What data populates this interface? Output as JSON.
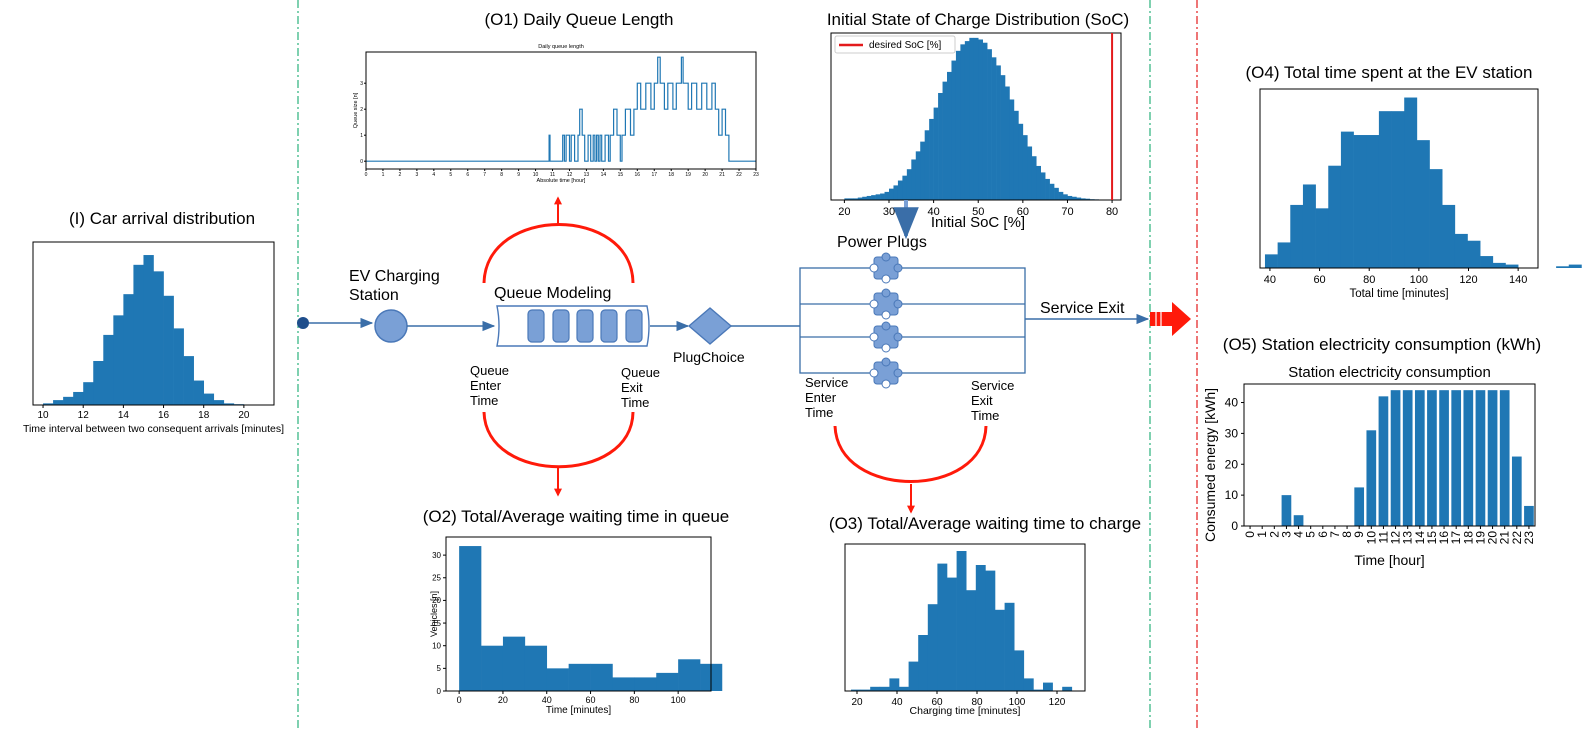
{
  "colors": {
    "bar": "#1f77b4",
    "red": "#ff1a0a",
    "accent_line": "#e31a1c",
    "flow": "#3a6ea8",
    "node_fill": "#7aa0d6",
    "node_stroke": "#4a78b8",
    "sep_green": "#2ab27b",
    "sep_red": "#e31a1c"
  },
  "titles": {
    "o1": "(O1) Daily Queue Length",
    "soc": "Initial State of Charge Distribution (SoC)",
    "o4": "(O4) Total  time spent at the EV station",
    "i": "(I) Car arrival distribution",
    "o5": "(O5) Station electricity consumption (kWh)",
    "o2": "(O2) Total/Average waiting time in queue",
    "o3": "(O3) Total/Average waiting time to charge"
  },
  "diagram": {
    "ev_station": [
      "EV Charging",
      "Station"
    ],
    "queue_modeling": "Queue  Modeling",
    "plug_choice": "PlugChoice",
    "power_plugs": "Power Plugs",
    "service_exit": "Service Exit",
    "queue_enter": [
      "Queue",
      "Enter",
      "Time"
    ],
    "queue_exit": [
      "Queue",
      "Exit",
      "Time"
    ],
    "service_enter": [
      "Service",
      "Enter",
      "Time"
    ],
    "service_exit_time": [
      "Service",
      "Exit",
      "Time"
    ]
  },
  "chart_data": [
    {
      "id": "arrival",
      "type": "bar",
      "xlabel": "Time interval between two consequent arrivals [minutes]",
      "xlim": [
        9.5,
        21.5
      ],
      "ylim": [
        0,
        1.0
      ],
      "xticks": [
        10,
        12,
        14,
        16,
        18,
        20
      ],
      "bin_start": 10,
      "bin_width": 0.5,
      "values": [
        0.01,
        0.03,
        0.05,
        0.08,
        0.14,
        0.27,
        0.43,
        0.55,
        0.68,
        0.86,
        0.92,
        0.82,
        0.67,
        0.47,
        0.3,
        0.15,
        0.07,
        0.03,
        0.01,
        0.005
      ]
    },
    {
      "id": "queue",
      "type": "line",
      "title": "Daily queue length",
      "xlabel": "Absolute time [hour]",
      "ylabel": "Queue size [n]",
      "xlim": [
        0,
        23
      ],
      "ylim": [
        -0.3,
        4.2
      ],
      "xticks": [
        0,
        1,
        2,
        3,
        4,
        5,
        6,
        7,
        8,
        9,
        10,
        11,
        12,
        13,
        14,
        15,
        16,
        17,
        18,
        19,
        20,
        21,
        22,
        23
      ],
      "yticks": [
        0,
        1,
        2,
        3
      ],
      "points": [
        [
          0,
          0
        ],
        [
          10.8,
          0
        ],
        [
          10.8,
          1
        ],
        [
          10.85,
          1
        ],
        [
          10.85,
          0
        ],
        [
          11.6,
          0
        ],
        [
          11.6,
          1
        ],
        [
          11.7,
          1
        ],
        [
          11.7,
          0
        ],
        [
          11.8,
          0
        ],
        [
          11.8,
          1
        ],
        [
          12.0,
          1
        ],
        [
          12.0,
          0
        ],
        [
          12.1,
          0
        ],
        [
          12.1,
          1
        ],
        [
          12.3,
          1
        ],
        [
          12.3,
          0
        ],
        [
          12.5,
          0
        ],
        [
          12.5,
          1
        ],
        [
          12.6,
          1
        ],
        [
          12.6,
          2
        ],
        [
          12.75,
          2
        ],
        [
          12.75,
          1
        ],
        [
          12.9,
          1
        ],
        [
          12.9,
          0
        ],
        [
          13.1,
          0
        ],
        [
          13.1,
          1
        ],
        [
          13.25,
          1
        ],
        [
          13.25,
          0
        ],
        [
          13.4,
          0
        ],
        [
          13.4,
          1
        ],
        [
          13.5,
          1
        ],
        [
          13.5,
          0
        ],
        [
          13.6,
          0
        ],
        [
          13.6,
          1
        ],
        [
          13.7,
          1
        ],
        [
          13.7,
          0
        ],
        [
          13.8,
          0
        ],
        [
          13.8,
          1
        ],
        [
          13.9,
          1
        ],
        [
          13.9,
          0
        ],
        [
          14.1,
          0
        ],
        [
          14.1,
          1
        ],
        [
          14.3,
          1
        ],
        [
          14.3,
          0
        ],
        [
          14.4,
          0
        ],
        [
          14.4,
          1
        ],
        [
          14.6,
          1
        ],
        [
          14.6,
          2
        ],
        [
          14.8,
          2
        ],
        [
          14.8,
          1
        ],
        [
          15.0,
          1
        ],
        [
          15.0,
          0
        ],
        [
          15.1,
          0
        ],
        [
          15.1,
          1
        ],
        [
          15.3,
          1
        ],
        [
          15.3,
          2
        ],
        [
          15.6,
          2
        ],
        [
          15.6,
          1
        ],
        [
          15.8,
          1
        ],
        [
          15.8,
          2
        ],
        [
          16.0,
          2
        ],
        [
          16.0,
          3
        ],
        [
          16.2,
          3
        ],
        [
          16.2,
          2
        ],
        [
          16.5,
          2
        ],
        [
          16.5,
          3
        ],
        [
          16.8,
          3
        ],
        [
          16.8,
          2
        ],
        [
          17.0,
          2
        ],
        [
          17.0,
          3
        ],
        [
          17.2,
          3
        ],
        [
          17.2,
          4
        ],
        [
          17.35,
          4
        ],
        [
          17.35,
          3
        ],
        [
          17.6,
          3
        ],
        [
          17.6,
          2
        ],
        [
          17.8,
          2
        ],
        [
          17.8,
          3
        ],
        [
          18.1,
          3
        ],
        [
          18.1,
          2
        ],
        [
          18.3,
          2
        ],
        [
          18.3,
          3
        ],
        [
          18.6,
          3
        ],
        [
          18.6,
          4
        ],
        [
          18.7,
          4
        ],
        [
          18.7,
          3
        ],
        [
          19.0,
          3
        ],
        [
          19.0,
          2
        ],
        [
          19.2,
          2
        ],
        [
          19.2,
          3
        ],
        [
          19.5,
          3
        ],
        [
          19.5,
          2
        ],
        [
          19.8,
          2
        ],
        [
          19.8,
          3
        ],
        [
          20.1,
          3
        ],
        [
          20.1,
          2
        ],
        [
          20.4,
          2
        ],
        [
          20.4,
          3
        ],
        [
          20.6,
          3
        ],
        [
          20.6,
          2
        ],
        [
          20.8,
          2
        ],
        [
          20.8,
          1
        ],
        [
          21.0,
          1
        ],
        [
          21.0,
          2
        ],
        [
          21.2,
          2
        ],
        [
          21.2,
          1
        ],
        [
          21.4,
          1
        ],
        [
          21.4,
          0
        ],
        [
          23,
          0
        ]
      ]
    },
    {
      "id": "soc",
      "type": "bar",
      "xlabel": "Initial SoC [%]",
      "legend": "desired SoC [%]",
      "desired": 80,
      "xlim": [
        17,
        82
      ],
      "ylim": [
        0,
        1.03
      ],
      "xticks": [
        20,
        30,
        40,
        50,
        60,
        70,
        80
      ],
      "bin_start": 20,
      "bin_width": 1,
      "values": [
        0.01,
        0.01,
        0.01,
        0.015,
        0.02,
        0.025,
        0.03,
        0.035,
        0.04,
        0.05,
        0.07,
        0.09,
        0.12,
        0.15,
        0.19,
        0.25,
        0.3,
        0.36,
        0.43,
        0.5,
        0.57,
        0.66,
        0.73,
        0.79,
        0.86,
        0.92,
        0.96,
        0.98,
        1.0,
        1.0,
        0.99,
        0.97,
        0.93,
        0.88,
        0.83,
        0.77,
        0.7,
        0.62,
        0.55,
        0.47,
        0.4,
        0.33,
        0.27,
        0.21,
        0.17,
        0.13,
        0.1,
        0.075,
        0.05,
        0.035,
        0.025,
        0.02,
        0.015,
        0.01,
        0.008,
        0.005,
        0.004,
        0.003
      ]
    },
    {
      "id": "total",
      "type": "bar",
      "xlabel": "Total time [minutes]",
      "xlim": [
        36,
        148
      ],
      "ylim": [
        0,
        1.05
      ],
      "xticks": [
        40,
        60,
        80,
        100,
        120,
        140
      ],
      "bin_start": 38,
      "bin_width": 5.1,
      "values": [
        0.08,
        0.15,
        0.37,
        0.49,
        0.35,
        0.6,
        0.8,
        0.78,
        0.78,
        0.92,
        0.92,
        1.0,
        0.75,
        0.58,
        0.37,
        0.2,
        0.16,
        0.07,
        0.03,
        0.02,
        0.0,
        0.0,
        0.0,
        0.01,
        0.02
      ]
    },
    {
      "id": "energy",
      "type": "bar",
      "title": "Station electricity consumption",
      "xlabel": "Time [hour]",
      "ylabel": "Consumed energy [kWh]",
      "ylim": [
        0,
        46
      ],
      "yticks": [
        0,
        10,
        20,
        30,
        40
      ],
      "categories": [
        "0",
        "1",
        "2",
        "3",
        "4",
        "5",
        "6",
        "7",
        "8",
        "9",
        "10",
        "11",
        "12",
        "13",
        "14",
        "15",
        "16",
        "17",
        "18",
        "19",
        "20",
        "21",
        "22",
        "23"
      ],
      "values": [
        0,
        0,
        0,
        10,
        3.5,
        0,
        0,
        0,
        0,
        12.5,
        31,
        42,
        44,
        44,
        44,
        44,
        44,
        44,
        44,
        44,
        44,
        44,
        22.5,
        6.5
      ]
    },
    {
      "id": "wait",
      "type": "bar",
      "xlabel": "Time [minutes]",
      "ylabel": "Vehicles [n]",
      "xlim": [
        -6,
        115
      ],
      "ylim": [
        0,
        34
      ],
      "xticks": [
        0,
        20,
        40,
        60,
        80,
        100
      ],
      "yticks": [
        0,
        5,
        10,
        15,
        20,
        25,
        30
      ],
      "bin_start": 0,
      "bin_width": 10,
      "values": [
        32,
        10,
        12,
        10,
        5,
        6,
        6,
        3,
        3,
        4,
        7,
        6
      ]
    },
    {
      "id": "charge",
      "type": "bar",
      "xlabel": "Charging time [minutes]",
      "xlim": [
        14,
        134
      ],
      "ylim": [
        0,
        1.05
      ],
      "xticks": [
        20,
        40,
        60,
        80,
        100,
        120
      ],
      "bin_start": 17,
      "bin_width": 4.8,
      "values": [
        0.01,
        0.01,
        0.03,
        0.03,
        0.09,
        0.03,
        0.21,
        0.4,
        0.62,
        0.91,
        0.81,
        1.0,
        0.72,
        0.9,
        0.86,
        0.58,
        0.63,
        0.29,
        0.09,
        0.01,
        0.06,
        0.0,
        0.03
      ]
    }
  ]
}
